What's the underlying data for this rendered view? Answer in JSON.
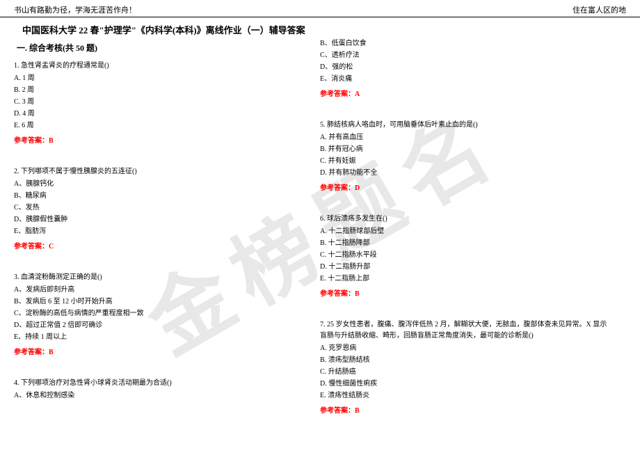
{
  "header": {
    "left": "书山有路勤为径，学海无涯苦作舟！",
    "right": "住在富人区的地"
  },
  "watermark": "金榜题名",
  "title": "中国医科大学 22 春\"护理学\"《内科学(本科)》离线作业（一）辅导答案",
  "section": "一. 综合考核(共 50 题)",
  "colors": {
    "answer": "#ff0000",
    "text": "#000000",
    "watermark": "#e8e8e8",
    "background": "#ffffff"
  },
  "left_questions": [
    {
      "text": "1. 急性肾盂肾炎的疗程通常是()",
      "options": [
        "A. 1 周",
        "B. 2 周",
        "C. 3 周",
        "D. 4 周",
        "E. 6 周"
      ],
      "answer": "参考答案：B"
    },
    {
      "text": "2. 下列哪项不属于慢性胰腺炎的五连征()",
      "options": [
        "A、胰腺钙化",
        "B、糖尿病",
        "C、发热",
        "D、胰腺假性囊肿",
        "E、脂肪泻"
      ],
      "answer": "参考答案：C"
    },
    {
      "text": "3. 血清淀粉酶测定正确的是()",
      "options": [
        "A、发病后即刻升高",
        "B、发病后 6 至 12 小时开始升高",
        "C、淀粉酶的高低与病情的严重程度相一致",
        "D、超过正常值 2 倍即可确诊",
        "E、持续 1 周以上"
      ],
      "answer": "参考答案：B"
    },
    {
      "text": "4. 下列哪项治疗对急性肾小球肾炎活动期最为合适()",
      "options": [
        "A、休息和控制感染"
      ],
      "answer": ""
    }
  ],
  "right_questions": [
    {
      "text": "",
      "options": [
        "B、低蛋白饮食",
        "C、透析疗法",
        "D、强的松",
        "E、消炎痛"
      ],
      "answer": "参考答案：A"
    },
    {
      "text": "5. 肺结核病人咯血时，可用脑垂体后叶素止血的是()",
      "options": [
        "A. 并有高血压",
        "B. 并有冠心病",
        "C. 并有妊娠",
        "D. 并有肺功能不全"
      ],
      "answer": "参考答案：D"
    },
    {
      "text": "6. 球后溃疡多发生在()",
      "options": [
        "A. 十二指肠球部后壁",
        "B. 十二指肠降部",
        "C. 十二指肠水平段",
        "D. 十二指肠升部",
        "E. 十二指肠上部"
      ],
      "answer": "参考答案：B"
    },
    {
      "text": "7. 25 岁女性患者，腹痛、腹泻伴低热 2 月，解糊状大便，无脓血，腹部体查未见异常。X 显示盲肠与升结肠收缩、畸形，回肠盲肠正常角度消失，最可能的诊断是()",
      "options": [
        "A. 克罗恩病",
        "B. 溃疡型肠结核",
        "C. 升结肠癌",
        "D. 慢性细菌性痢疾",
        "E. 溃疡性结肠炎"
      ],
      "answer": "参考答案：B"
    }
  ]
}
